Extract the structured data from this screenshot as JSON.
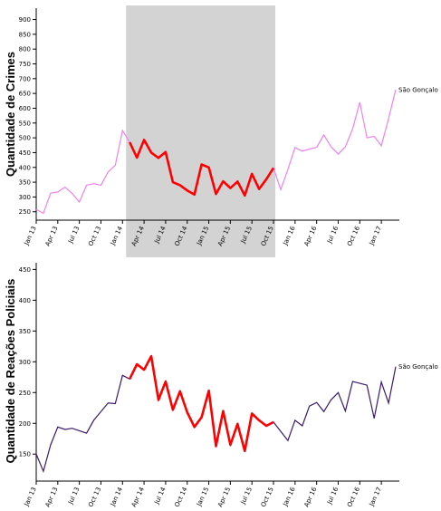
{
  "chart_data": [
    {
      "type": "line",
      "ylabel": "Quantidade de Crimes",
      "ylim": [
        240,
        920
      ],
      "yticks": [
        250,
        300,
        350,
        400,
        450,
        500,
        550,
        600,
        650,
        700,
        750,
        800,
        850,
        900
      ],
      "xticks": [
        "Jan 13",
        "Apr 13",
        "Jul 13",
        "Oct 13",
        "Jan 14",
        "Apr 14",
        "Jul 14",
        "Oct 14",
        "Jan 15",
        "Apr 15",
        "Jul 15",
        "Oct 15",
        "Jan 16",
        "Apr 16",
        "Jul 16",
        "Oct 16",
        "Jan 17"
      ],
      "x_start": "2013-01",
      "highlight_range": [
        "2014-02",
        "2015-10"
      ],
      "highlight_color": "#d3d3d3",
      "line_color": "#ee82ee",
      "highlight_line_color": "#ff0000",
      "series": [
        {
          "name": "São Gonçalo",
          "values": [
            258,
            245,
            313,
            317,
            333,
            312,
            283,
            340,
            345,
            340,
            385,
            407,
            525,
            485,
            433,
            493,
            450,
            432,
            452,
            350,
            340,
            322,
            308,
            410,
            400,
            310,
            353,
            330,
            352,
            305,
            378,
            327,
            360,
            398,
            325,
            393,
            467,
            455,
            462,
            468,
            510,
            470,
            445,
            470,
            530,
            620,
            500,
            505,
            473,
            565,
            663
          ]
        }
      ]
    },
    {
      "type": "line",
      "ylabel": "Quantidade de Reações Policiais",
      "ylim": [
        115,
        455
      ],
      "yticks": [
        150,
        200,
        250,
        300,
        350,
        400,
        450
      ],
      "xticks": [
        "Jan 13",
        "Apr 13",
        "Jul 13",
        "Oct 13",
        "Jan 14",
        "Apr 14",
        "Jul 14",
        "Oct 14",
        "Jan 15",
        "Apr 15",
        "Jul 15",
        "Oct 15",
        "Jan 16",
        "Apr 16",
        "Jul 16",
        "Oct 16",
        "Jan 17"
      ],
      "x_start": "2013-01",
      "highlight_range": [
        "2014-02",
        "2015-10"
      ],
      "line_color": "#3a1a6e",
      "highlight_line_color": "#ff0000",
      "series": [
        {
          "name": "São Gonçalo",
          "values": [
            150,
            122,
            165,
            194,
            190,
            192,
            188,
            184,
            205,
            219,
            233,
            232,
            278,
            272,
            296,
            287,
            309,
            238,
            268,
            222,
            252,
            218,
            194,
            210,
            253,
            163,
            220,
            165,
            199,
            155,
            216,
            205,
            196,
            202,
            187,
            172,
            205,
            196,
            228,
            234,
            219,
            238,
            250,
            220,
            268,
            265,
            262,
            208,
            267,
            233,
            292
          ]
        }
      ]
    }
  ]
}
